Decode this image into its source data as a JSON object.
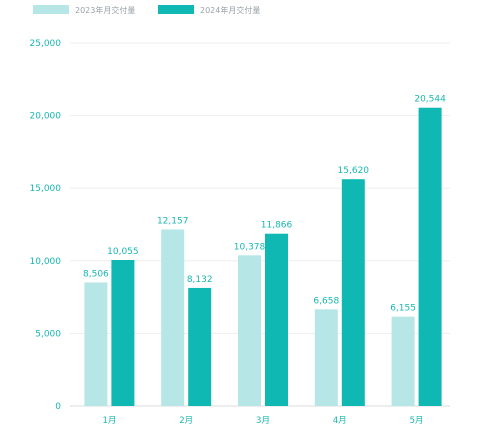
{
  "chart_data": {
    "type": "bar",
    "title": "",
    "xlabel": "",
    "ylabel": "",
    "categories": [
      "1月",
      "2月",
      "3月",
      "4月",
      "5月"
    ],
    "series": [
      {
        "name": "2023年月交付量",
        "color": "#b6e6e6",
        "values": [
          8506,
          12157,
          10378,
          6658,
          6155
        ]
      },
      {
        "name": "2024年月交付量",
        "color": "#10b8b4",
        "values": [
          10055,
          8132,
          11866,
          15620,
          20544
        ]
      }
    ],
    "ylim": [
      0,
      25000
    ],
    "yticks": [
      0,
      5000,
      10000,
      15000,
      20000,
      25000
    ],
    "ytick_labels": [
      "0",
      "5,000",
      "10,000",
      "15,000",
      "20,000",
      "25,000"
    ],
    "data_labels": [
      [
        "8,506",
        "12,157",
        "10,378",
        "6,658",
        "6,155"
      ],
      [
        "10,055",
        "8,132",
        "11,866",
        "15,620",
        "20,544"
      ]
    ],
    "grid": true,
    "legend_position": "top-left"
  }
}
